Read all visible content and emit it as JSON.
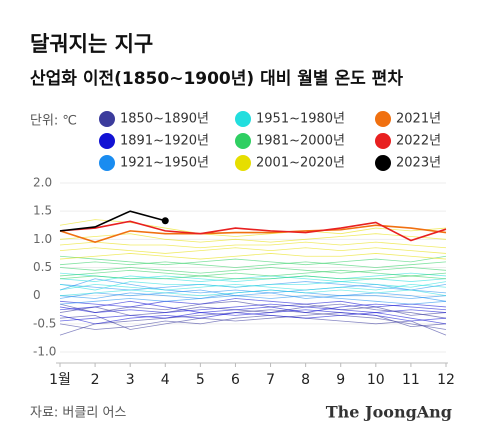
{
  "chart_data": {
    "type": "line",
    "title": "달궈지는 지구",
    "subtitle": "산업화 이전(1850~1900년) 대비 월별 온도 편차",
    "unit_label": "단위: ℃",
    "source": "자료: 버클리 어스",
    "brand": "The JoongAng",
    "categories": [
      "1월",
      "2",
      "3",
      "4",
      "5",
      "6",
      "7",
      "8",
      "9",
      "10",
      "11",
      "12"
    ],
    "ylim": [
      -1.0,
      2.0
    ],
    "yticks": [
      {
        "value": 2,
        "label": "2.0"
      },
      1.5,
      {
        "value": 1,
        "label": "1.0"
      },
      0.5,
      0,
      -0.5,
      {
        "value": -1,
        "label": "-1.0"
      }
    ],
    "grid": true,
    "series": [
      {
        "name": "1850~1890년",
        "color": "#3b3b9c",
        "lines": [
          [
            -0.7,
            -0.5,
            -0.45,
            -0.4,
            -0.35,
            -0.3,
            -0.25,
            -0.3,
            -0.35,
            -0.4,
            -0.5,
            -0.6
          ],
          [
            -0.3,
            -0.2,
            -0.35,
            -0.3,
            -0.2,
            -0.25,
            -0.3,
            -0.2,
            -0.15,
            -0.25,
            -0.3,
            -0.4
          ],
          [
            -0.5,
            -0.6,
            -0.55,
            -0.45,
            -0.5,
            -0.4,
            -0.35,
            -0.4,
            -0.45,
            -0.5,
            -0.45,
            -0.7
          ],
          [
            -0.15,
            -0.3,
            -0.2,
            -0.25,
            -0.15,
            -0.1,
            -0.2,
            -0.15,
            -0.25,
            -0.2,
            -0.35,
            -0.3
          ],
          [
            -0.4,
            -0.35,
            -0.6,
            -0.5,
            -0.4,
            -0.45,
            -0.4,
            -0.35,
            -0.3,
            -0.35,
            -0.55,
            -0.5
          ]
        ]
      },
      {
        "name": "1891~1920년",
        "color": "#1212d4",
        "lines": [
          [
            -0.2,
            -0.3,
            -0.25,
            -0.3,
            -0.25,
            -0.2,
            -0.15,
            -0.2,
            -0.25,
            -0.3,
            -0.25,
            -0.3
          ],
          [
            -0.45,
            -0.4,
            -0.35,
            -0.4,
            -0.3,
            -0.35,
            -0.3,
            -0.25,
            -0.3,
            -0.35,
            -0.45,
            -0.4
          ],
          [
            -0.1,
            -0.15,
            -0.2,
            -0.1,
            -0.15,
            -0.05,
            -0.1,
            -0.15,
            -0.1,
            -0.2,
            -0.15,
            -0.2
          ],
          [
            -0.35,
            -0.5,
            -0.4,
            -0.35,
            -0.4,
            -0.3,
            -0.35,
            -0.4,
            -0.35,
            -0.3,
            -0.4,
            -0.5
          ],
          [
            -0.25,
            -0.2,
            -0.1,
            -0.2,
            -0.3,
            -0.25,
            -0.2,
            -0.3,
            -0.2,
            -0.15,
            -0.2,
            -0.25
          ]
        ]
      },
      {
        "name": "1921~1950년",
        "color": "#1a8cf0",
        "lines": [
          [
            0.0,
            -0.05,
            0.05,
            0.0,
            -0.05,
            0.05,
            0.1,
            0.05,
            0.0,
            0.05,
            0.0,
            -0.1
          ],
          [
            -0.15,
            -0.1,
            -0.05,
            -0.1,
            -0.05,
            0.0,
            -0.05,
            0.0,
            -0.05,
            -0.1,
            -0.15,
            -0.1
          ],
          [
            0.2,
            0.15,
            0.1,
            0.15,
            0.2,
            0.15,
            0.2,
            0.25,
            0.2,
            0.15,
            0.1,
            0.2
          ],
          [
            0.1,
            0.3,
            0.2,
            0.1,
            0.05,
            0.1,
            0.05,
            0.1,
            0.15,
            0.2,
            0.1,
            0.05
          ],
          [
            -0.05,
            0.05,
            0.0,
            0.05,
            0.1,
            0.0,
            0.05,
            -0.05,
            0.0,
            0.0,
            -0.05,
            0.0
          ]
        ]
      },
      {
        "name": "1951~1980년",
        "color": "#22dede",
        "lines": [
          [
            0.1,
            0.2,
            0.15,
            0.1,
            0.15,
            0.2,
            0.15,
            0.1,
            0.15,
            0.1,
            0.2,
            0.15
          ],
          [
            0.3,
            0.25,
            0.35,
            0.3,
            0.25,
            0.3,
            0.35,
            0.3,
            0.25,
            0.3,
            0.25,
            0.3
          ],
          [
            0.0,
            0.05,
            0.1,
            0.05,
            0.0,
            0.05,
            0.1,
            0.05,
            0.1,
            0.05,
            0.1,
            0.0
          ],
          [
            0.4,
            0.35,
            0.3,
            0.35,
            0.3,
            0.25,
            0.3,
            0.35,
            0.3,
            0.35,
            0.4,
            0.35
          ],
          [
            0.2,
            0.1,
            0.25,
            0.2,
            0.2,
            0.15,
            0.2,
            0.2,
            0.25,
            0.2,
            0.15,
            0.25
          ]
        ]
      },
      {
        "name": "1981~2000년",
        "color": "#2fcf62",
        "lines": [
          [
            0.5,
            0.45,
            0.5,
            0.45,
            0.4,
            0.45,
            0.5,
            0.45,
            0.4,
            0.45,
            0.5,
            0.45
          ],
          [
            0.35,
            0.4,
            0.45,
            0.4,
            0.35,
            0.4,
            0.35,
            0.4,
            0.45,
            0.4,
            0.35,
            0.4
          ],
          [
            0.7,
            0.65,
            0.6,
            0.55,
            0.6,
            0.65,
            0.6,
            0.55,
            0.6,
            0.65,
            0.6,
            0.7
          ],
          [
            0.55,
            0.6,
            0.55,
            0.6,
            0.55,
            0.5,
            0.55,
            0.6,
            0.55,
            0.5,
            0.55,
            0.6
          ],
          [
            0.3,
            0.35,
            0.3,
            0.3,
            0.35,
            0.3,
            0.3,
            0.35,
            0.3,
            0.3,
            0.35,
            0.3
          ]
        ]
      },
      {
        "name": "2001~2020년",
        "color": "#e6de00",
        "lines": [
          [
            0.8,
            0.85,
            0.8,
            0.75,
            0.8,
            0.85,
            0.8,
            0.85,
            0.8,
            0.85,
            0.8,
            0.75
          ],
          [
            1.0,
            1.05,
            1.1,
            1.0,
            0.95,
            1.0,
            0.95,
            1.0,
            1.05,
            1.1,
            1.05,
            1.0
          ],
          [
            0.65,
            0.7,
            0.75,
            0.7,
            0.65,
            0.7,
            0.75,
            0.7,
            0.7,
            0.75,
            0.7,
            0.65
          ],
          [
            1.25,
            1.35,
            1.3,
            1.2,
            1.1,
            1.05,
            1.1,
            1.15,
            1.1,
            1.2,
            1.15,
            1.2
          ],
          [
            0.9,
            0.95,
            0.9,
            0.9,
            0.85,
            0.9,
            0.9,
            0.95,
            0.9,
            0.95,
            0.9,
            0.85
          ]
        ]
      },
      {
        "name": "2021년",
        "color": "#f07010",
        "lines": [
          [
            1.15,
            0.95,
            1.15,
            1.1,
            1.1,
            1.12,
            1.12,
            1.15,
            1.17,
            1.25,
            1.2,
            1.12
          ]
        ]
      },
      {
        "name": "2022년",
        "color": "#e82020",
        "lines": [
          [
            1.15,
            1.2,
            1.32,
            1.15,
            1.1,
            1.2,
            1.15,
            1.12,
            1.2,
            1.3,
            0.98,
            1.18
          ]
        ]
      },
      {
        "name": "2023년",
        "color": "#000000",
        "marker": true,
        "lines": [
          [
            1.15,
            1.22,
            1.5,
            1.33
          ]
        ]
      }
    ]
  }
}
